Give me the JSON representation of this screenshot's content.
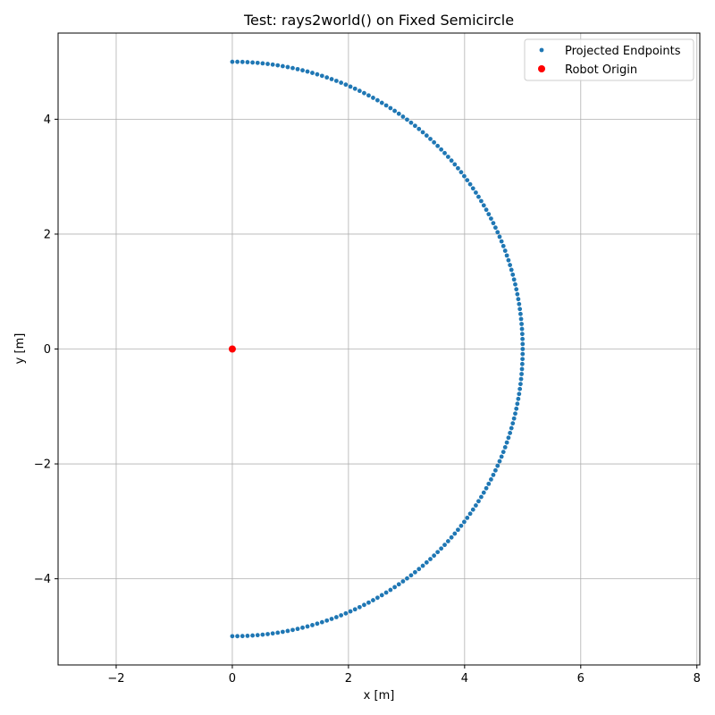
{
  "chart_data": {
    "type": "scatter",
    "title": "Test: rays2world() on Fixed Semicircle",
    "xlabel": "x [m]",
    "ylabel": "y [m]",
    "xlim": [
      -3.0,
      8.05
    ],
    "ylim": [
      -5.5,
      5.5
    ],
    "xticks": [
      -2,
      0,
      2,
      4,
      6,
      8
    ],
    "yticks": [
      -4,
      -2,
      0,
      2,
      4
    ],
    "xtick_labels": [
      "−2",
      "0",
      "2",
      "4",
      "6",
      "8"
    ],
    "ytick_labels": [
      "−4",
      "−2",
      "0",
      "2",
      "4"
    ],
    "grid": true,
    "legend_position": "top-right",
    "semicircle": {
      "radius": 5,
      "angle_start_deg": -90,
      "angle_end_deg": 90,
      "num_points": 181
    },
    "series": [
      {
        "name": "Projected Endpoints",
        "color": "#1f77b4",
        "marker": "small-dot"
      },
      {
        "name": "Robot Origin",
        "color": "#ff0000",
        "marker": "dot",
        "x": [
          0
        ],
        "y": [
          0
        ]
      }
    ]
  }
}
